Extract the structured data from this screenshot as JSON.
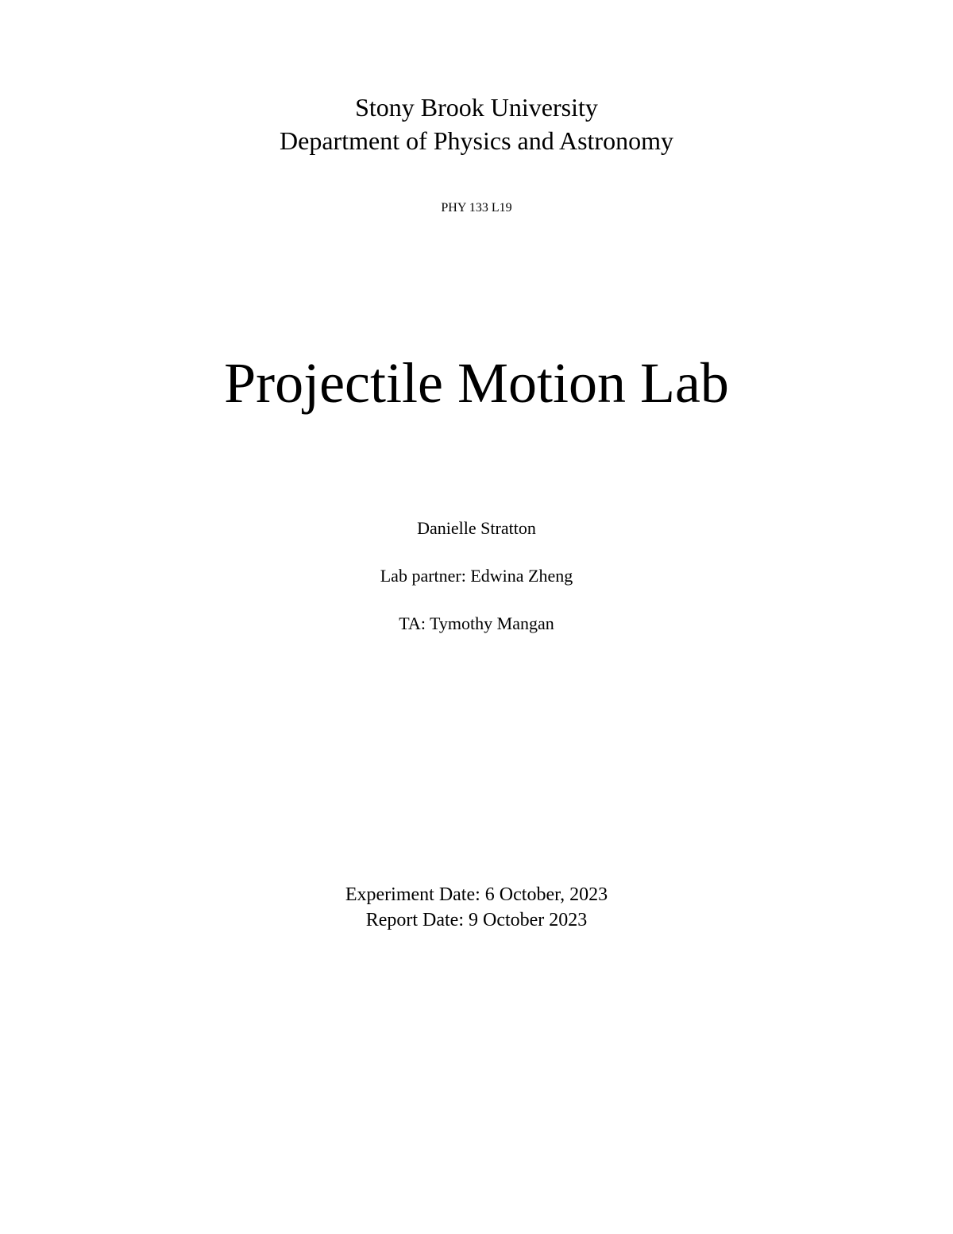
{
  "header": {
    "university": "Stony Brook University",
    "department": "Department of Physics and Astronomy",
    "course_code": "PHY 133 L19"
  },
  "title": "Projectile Motion Lab",
  "authors": {
    "student": "Danielle Stratton",
    "partner_label": "Lab partner: Edwina Zheng",
    "ta_label": "TA: Tymothy Mangan"
  },
  "dates": {
    "experiment": "Experiment Date: 6 October, 2023",
    "report": "Report Date: 9 October 2023"
  },
  "style": {
    "background_color": "#ffffff",
    "text_color": "#000000",
    "font_family": "Times New Roman",
    "university_fontsize": 32,
    "course_fontsize": 16,
    "title_fontsize": 72,
    "author_fontsize": 22,
    "date_fontsize": 24
  }
}
